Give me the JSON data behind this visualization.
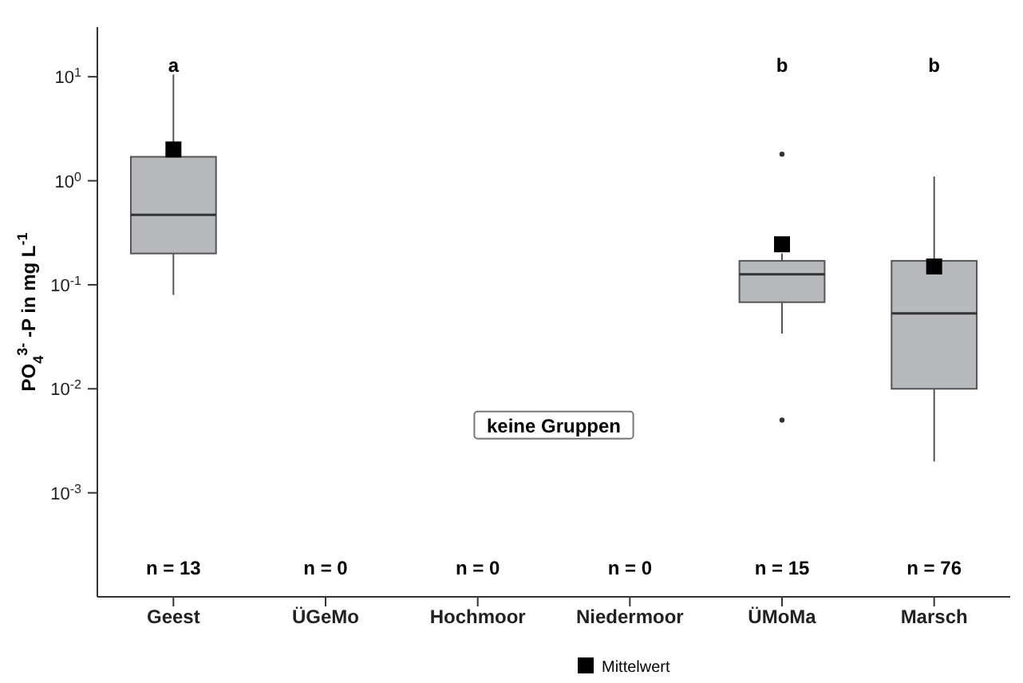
{
  "chart_data": {
    "type": "box",
    "ylabel": "PO$_{4}$$^{3-}$ -P in mg L$^{-1}$",
    "categories": [
      "Geest",
      "ÜGeMo",
      "Hochmoor",
      "Niedermoor",
      "ÜMoMa",
      "Marsch"
    ],
    "color": "#b8b9bd",
    "boxes": [
      {
        "low": 0.08,
        "q1": 0.2,
        "median": 0.47,
        "q3": 1.7,
        "high": 10.5
      },
      null,
      null,
      null,
      {
        "low": 0.034,
        "q1": 0.068,
        "median": 0.126,
        "q3": 0.17,
        "high": 0.2,
        "outliers": [
          1.8,
          0.005
        ]
      },
      {
        "low": 0.002,
        "q1": 0.01,
        "median": 0.053,
        "q3": 0.17,
        "high": 1.1
      }
    ],
    "series": [
      {
        "name": "Mittelwert",
        "type": "scatter",
        "x": [
          "Geest",
          "ÜMoMa",
          "Marsch"
        ],
        "values": [
          2.0,
          0.245,
          0.15
        ],
        "color": "#000000"
      }
    ],
    "marker": "square",
    "log": true,
    "ylim": [
      0.0001,
      30
    ],
    "yticks": [
      {
        "value": 0.001,
        "label": "10$^{-3}$"
      },
      {
        "value": 0.01,
        "label": "10$^{-2}$"
      },
      {
        "value": 0.1,
        "label": "10$^{-1}$"
      },
      {
        "value": 1,
        "label": "10$^{0}$"
      },
      {
        "value": 10,
        "label": "10$^{1}$"
      }
    ],
    "legend": "bottom",
    "annotations": [
      "a",
      "b",
      "b",
      "n = 13",
      "n = 0",
      "n = 0",
      "n = 0",
      "n = 15",
      "n = 76",
      "keine Gruppen"
    ]
  }
}
